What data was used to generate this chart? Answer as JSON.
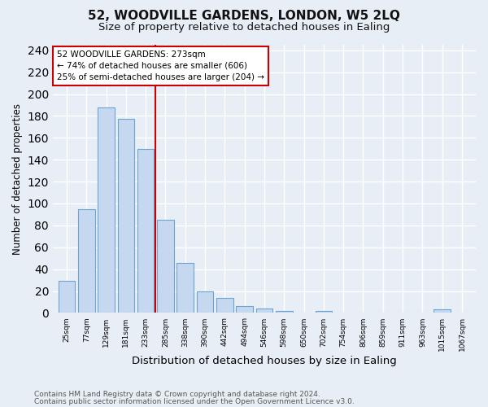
{
  "title": "52, WOODVILLE GARDENS, LONDON, W5 2LQ",
  "subtitle": "Size of property relative to detached houses in Ealing",
  "xlabel": "Distribution of detached houses by size in Ealing",
  "ylabel": "Number of detached properties",
  "footer_line1": "Contains HM Land Registry data © Crown copyright and database right 2024.",
  "footer_line2": "Contains public sector information licensed under the Open Government Licence v3.0.",
  "bar_labels": [
    "25sqm",
    "77sqm",
    "129sqm",
    "181sqm",
    "233sqm",
    "285sqm",
    "338sqm",
    "390sqm",
    "442sqm",
    "494sqm",
    "546sqm",
    "598sqm",
    "650sqm",
    "702sqm",
    "754sqm",
    "806sqm",
    "859sqm",
    "911sqm",
    "963sqm",
    "1015sqm",
    "1067sqm"
  ],
  "bar_heights": [
    29,
    95,
    188,
    177,
    150,
    85,
    46,
    20,
    14,
    6,
    4,
    2,
    0,
    2,
    0,
    0,
    0,
    0,
    0,
    3,
    0
  ],
  "bar_color": "#c5d8f0",
  "bar_edge_color": "#6ea3d0",
  "vline_x_index": 5,
  "vline_color": "#cc0000",
  "annotation_text": "52 WOODVILLE GARDENS: 273sqm\n← 74% of detached houses are smaller (606)\n25% of semi-detached houses are larger (204) →",
  "annotation_box_color": "#ffffff",
  "annotation_box_edge": "#cc0000",
  "ylim": [
    0,
    245
  ],
  "yticks": [
    0,
    20,
    40,
    60,
    80,
    100,
    120,
    140,
    160,
    180,
    200,
    220,
    240
  ],
  "bg_color": "#e8eef5",
  "plot_bg_color": "#e8eef5",
  "grid_color": "#ffffff",
  "title_fontsize": 11,
  "subtitle_fontsize": 9.5,
  "ylabel_fontsize": 8.5,
  "xlabel_fontsize": 9.5
}
